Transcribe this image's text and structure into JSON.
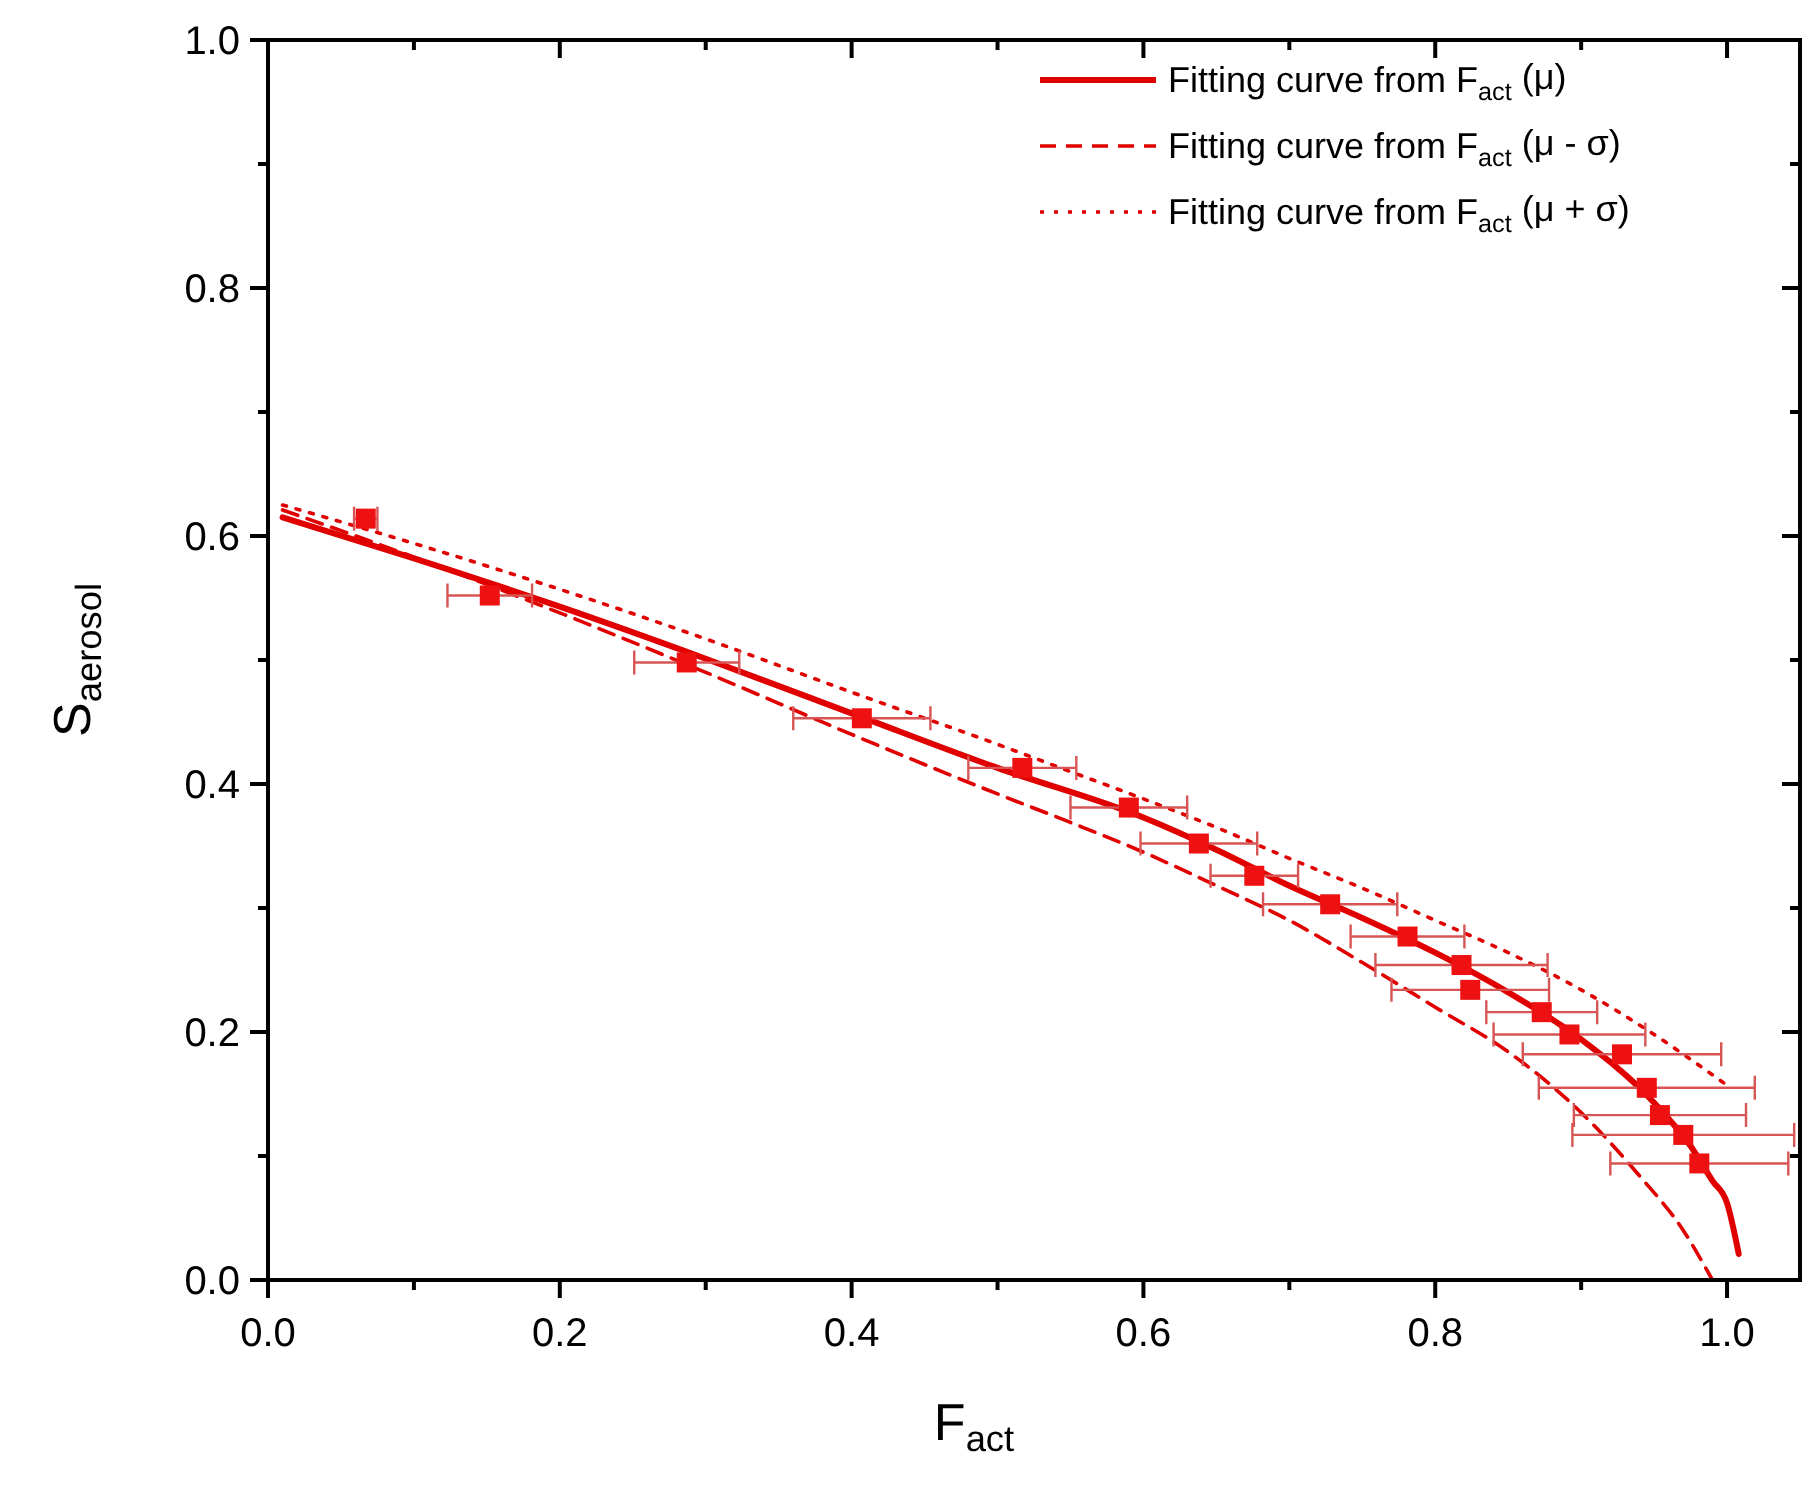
{
  "chart_data": {
    "type": "scatter",
    "xlabel": "F$_{act}$",
    "ylabel": "S$_{aerosol}$",
    "xlim": [
      0,
      1.05
    ],
    "ylim": [
      0,
      1.0
    ],
    "xticks": [
      {
        "value": 0,
        "label": "0.0"
      },
      {
        "value": 0.1,
        "label": null
      },
      {
        "value": 0.2,
        "label": "0.2"
      },
      {
        "value": 0.3,
        "label": null
      },
      {
        "value": 0.4,
        "label": "0.4"
      },
      {
        "value": 0.5,
        "label": null
      },
      {
        "value": 0.6,
        "label": "0.6"
      },
      {
        "value": 0.7,
        "label": null
      },
      {
        "value": 0.8,
        "label": "0.8"
      },
      {
        "value": 0.9,
        "label": null
      },
      {
        "value": 1.0,
        "label": "1.0"
      }
    ],
    "yticks": [
      {
        "value": 0,
        "label": "0.0"
      },
      {
        "value": 0.1,
        "label": null
      },
      {
        "value": 0.2,
        "label": "0.2"
      },
      {
        "value": 0.3,
        "label": null
      },
      {
        "value": 0.4,
        "label": "0.4"
      },
      {
        "value": 0.5,
        "label": null
      },
      {
        "value": 0.6,
        "label": "0.6"
      },
      {
        "value": 0.7,
        "label": null
      },
      {
        "value": 0.8,
        "label": "0.8"
      },
      {
        "value": 0.9,
        "label": null
      },
      {
        "value": 1.0,
        "label": "1.0"
      }
    ],
    "grid": false,
    "legend": "top right",
    "series": [
      {
        "marker": "square",
        "color": "#ee1111",
        "x": [
          0.067,
          0.152,
          0.287,
          0.407,
          0.517,
          0.59,
          0.638,
          0.676,
          0.728,
          0.781,
          0.818,
          0.824,
          0.873,
          0.892,
          0.928,
          0.945,
          0.954,
          0.97,
          0.981
        ],
        "values": [
          0.614,
          0.552,
          0.498,
          0.453,
          0.413,
          0.381,
          0.352,
          0.326,
          0.303,
          0.277,
          0.254,
          0.234,
          0.216,
          0.198,
          0.182,
          0.155,
          0.133,
          0.117,
          0.094
        ],
        "xerrors": [
          0.008,
          0.029,
          0.036,
          0.047,
          0.037,
          0.04,
          0.04,
          0.03,
          0.046,
          0.039,
          0.059,
          0.054,
          0.038,
          0.052,
          0.068,
          0.074,
          0.059,
          0.076,
          0.061
        ]
      },
      {
        "type": "line",
        "name": "Fitting curve from F$_{act}$ (μ)",
        "color": "#e00000",
        "line_style": "solid",
        "x": [
          0.01,
          0.1,
          0.2,
          0.3,
          0.4,
          0.5,
          0.6,
          0.65,
          0.7,
          0.75,
          0.8,
          0.85,
          0.9,
          0.95,
          0.975,
          0.99,
          1.0,
          1.008
        ],
        "values": [
          0.615,
          0.582,
          0.543,
          0.501,
          0.457,
          0.413,
          0.373,
          0.347,
          0.318,
          0.292,
          0.264,
          0.232,
          0.194,
          0.143,
          0.108,
          0.08,
          0.062,
          0.021
        ]
      },
      {
        "type": "line",
        "name": "Fitting curve from F$_{act}$ (μ - σ)",
        "color": "#e00000",
        "line_style": "dashed",
        "x": [
          0.01,
          0.1,
          0.2,
          0.3,
          0.4,
          0.5,
          0.55,
          0.6,
          0.65,
          0.7,
          0.75,
          0.8,
          0.85,
          0.9,
          0.94,
          0.97,
          0.99
        ],
        "values": [
          0.621,
          0.583,
          0.538,
          0.49,
          0.44,
          0.392,
          0.369,
          0.345,
          0.318,
          0.29,
          0.256,
          0.22,
          0.184,
          0.135,
          0.084,
          0.04,
          0.0
        ]
      },
      {
        "type": "line",
        "name": "Fitting curve from F$_{act}$ (μ + σ)",
        "color": "#e00000",
        "line_style": "dotted",
        "x": [
          0.01,
          0.1,
          0.2,
          0.3,
          0.4,
          0.5,
          0.55,
          0.6,
          0.65,
          0.7,
          0.75,
          0.8,
          0.85,
          0.9,
          0.95,
          1.0
        ],
        "values": [
          0.625,
          0.594,
          0.557,
          0.517,
          0.474,
          0.432,
          0.41,
          0.388,
          0.365,
          0.34,
          0.316,
          0.29,
          0.264,
          0.234,
          0.198,
          0.157
        ]
      }
    ]
  }
}
